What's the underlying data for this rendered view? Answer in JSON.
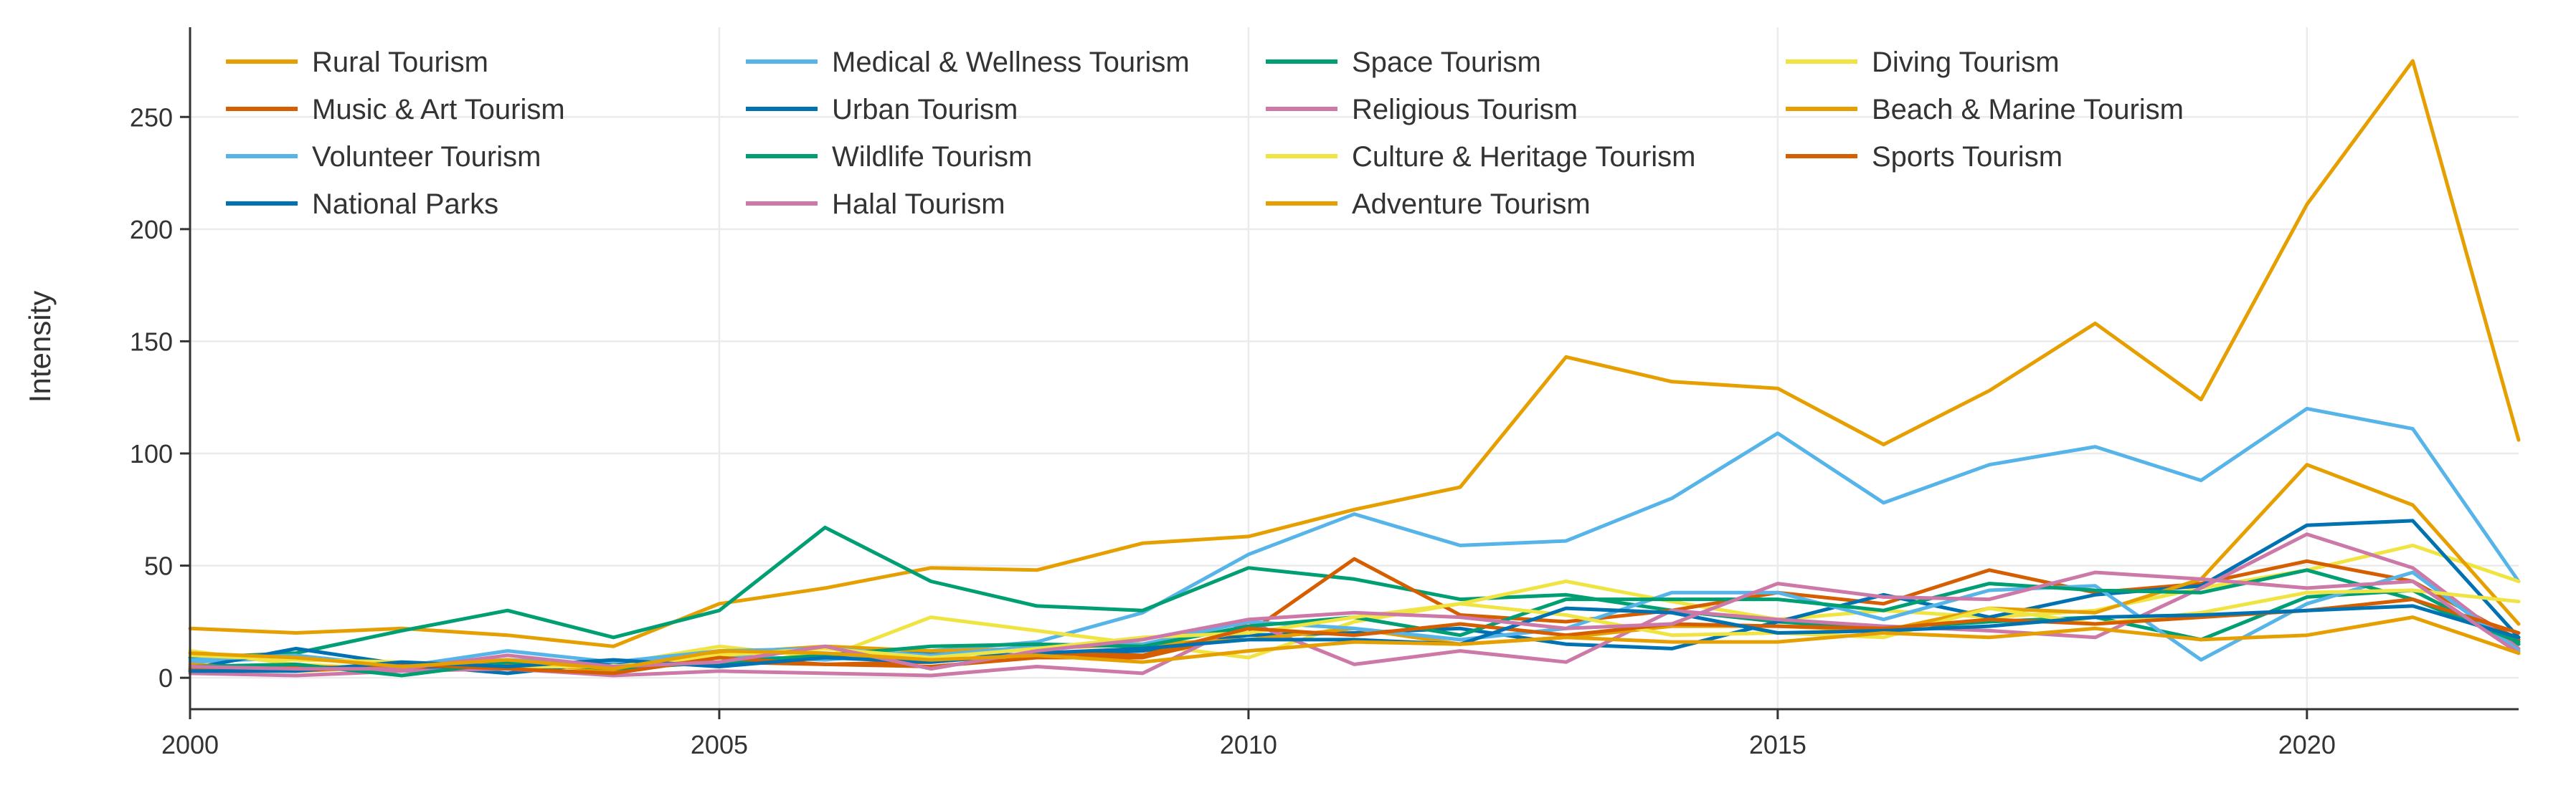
{
  "chart_data": {
    "type": "line",
    "title": "",
    "xlabel": "",
    "ylabel": "Intensity",
    "xlim": [
      2000,
      2022
    ],
    "ylim": [
      -14,
      290
    ],
    "x_ticks": [
      2000,
      2005,
      2010,
      2015,
      2020
    ],
    "y_ticks": [
      0,
      50,
      100,
      150,
      200,
      250
    ],
    "grid": true,
    "legend_position": "top-left",
    "x": [
      2000,
      2001,
      2002,
      2003,
      2004,
      2005,
      2006,
      2007,
      2008,
      2009,
      2010,
      2011,
      2012,
      2013,
      2014,
      2015,
      2016,
      2017,
      2018,
      2019,
      2020,
      2021,
      2022
    ],
    "series": [
      {
        "name": "Rural Tourism",
        "color": "#E69F00",
        "values": [
          22,
          20,
          22,
          19,
          14,
          33,
          40,
          49,
          48,
          60,
          63,
          75,
          85,
          143,
          132,
          129,
          104,
          128,
          158,
          124,
          211,
          275,
          106
        ]
      },
      {
        "name": "Medical & Wellness Tourism",
        "color": "#56B4E9",
        "values": [
          7,
          9,
          6,
          8,
          6,
          10,
          8,
          12,
          16,
          29,
          55,
          73,
          59,
          61,
          80,
          109,
          78,
          95,
          103,
          88,
          120,
          111,
          43
        ]
      },
      {
        "name": "Space Tourism",
        "color": "#009E73",
        "values": [
          9,
          11,
          21,
          30,
          18,
          30,
          67,
          43,
          32,
          30,
          49,
          44,
          35,
          37,
          30,
          25,
          22,
          25,
          27,
          17,
          36,
          39,
          15
        ]
      },
      {
        "name": "Diving Tourism",
        "color": "#F0E442",
        "values": [
          12,
          6,
          4,
          5,
          6,
          14,
          9,
          27,
          21,
          15,
          9,
          25,
          33,
          43,
          34,
          26,
          30,
          27,
          30,
          40,
          48,
          59,
          43
        ]
      },
      {
        "name": "Music & Art Tourism",
        "color": "#D55E00",
        "values": [
          3,
          5,
          4,
          6,
          4,
          7,
          6,
          5,
          9,
          9,
          20,
          53,
          28,
          25,
          30,
          38,
          33,
          48,
          38,
          42,
          52,
          43,
          17
        ]
      },
      {
        "name": "Urban Tourism",
        "color": "#0072B2",
        "values": [
          4,
          13,
          6,
          2,
          7,
          6,
          10,
          11,
          10,
          12,
          19,
          20,
          22,
          15,
          13,
          25,
          37,
          27,
          37,
          41,
          68,
          70,
          18
        ]
      },
      {
        "name": "Religious Tourism",
        "color": "#CC79A7",
        "values": [
          2,
          1,
          3,
          4,
          1,
          3,
          2,
          1,
          5,
          2,
          25,
          6,
          12,
          7,
          30,
          26,
          23,
          21,
          18,
          40,
          64,
          49,
          13
        ]
      },
      {
        "name": "Beach & Marine Tourism",
        "color": "#E69F00",
        "values": [
          6,
          3,
          5,
          7,
          3,
          11,
          14,
          12,
          13,
          15,
          17,
          22,
          15,
          18,
          23,
          23,
          21,
          31,
          29,
          44,
          95,
          77,
          24
        ]
      },
      {
        "name": "Volunteer Tourism",
        "color": "#56B4E9",
        "values": [
          8,
          10,
          5,
          12,
          7,
          12,
          13,
          10,
          14,
          15,
          25,
          22,
          17,
          22,
          38,
          38,
          26,
          39,
          41,
          8,
          33,
          47,
          12
        ]
      },
      {
        "name": "Wildlife Tourism",
        "color": "#009E73",
        "values": [
          5,
          6,
          1,
          7,
          4,
          7,
          10,
          14,
          15,
          14,
          23,
          27,
          19,
          35,
          35,
          35,
          30,
          42,
          39,
          38,
          48,
          35,
          16
        ]
      },
      {
        "name": "Culture & Heritage Tourism",
        "color": "#F0E442",
        "values": [
          10,
          8,
          7,
          5,
          5,
          10,
          13,
          9,
          13,
          18,
          20,
          27,
          33,
          28,
          19,
          20,
          18,
          31,
          24,
          29,
          38,
          39,
          34
        ]
      },
      {
        "name": "Sports Tourism",
        "color": "#D55E00",
        "values": [
          4,
          3,
          6,
          4,
          2,
          9,
          6,
          7,
          11,
          10,
          22,
          19,
          24,
          19,
          24,
          23,
          22,
          26,
          24,
          27,
          30,
          35,
          20
        ]
      },
      {
        "name": "National Parks",
        "color": "#0072B2",
        "values": [
          3,
          3,
          7,
          5,
          8,
          5,
          9,
          7,
          11,
          13,
          17,
          17,
          15,
          31,
          29,
          20,
          21,
          23,
          27,
          28,
          30,
          32,
          18
        ]
      },
      {
        "name": "Halal Tourism",
        "color": "#CC79A7",
        "values": [
          5,
          4,
          4,
          10,
          5,
          7,
          14,
          4,
          12,
          17,
          26,
          29,
          27,
          22,
          24,
          42,
          36,
          35,
          47,
          44,
          40,
          43,
          11
        ]
      },
      {
        "name": "Adventure Tourism",
        "color": "#E69F00",
        "values": [
          11,
          9,
          5,
          8,
          4,
          12,
          11,
          8,
          10,
          7,
          12,
          16,
          15,
          18,
          16,
          16,
          20,
          18,
          22,
          17,
          19,
          27,
          11
        ]
      }
    ]
  }
}
